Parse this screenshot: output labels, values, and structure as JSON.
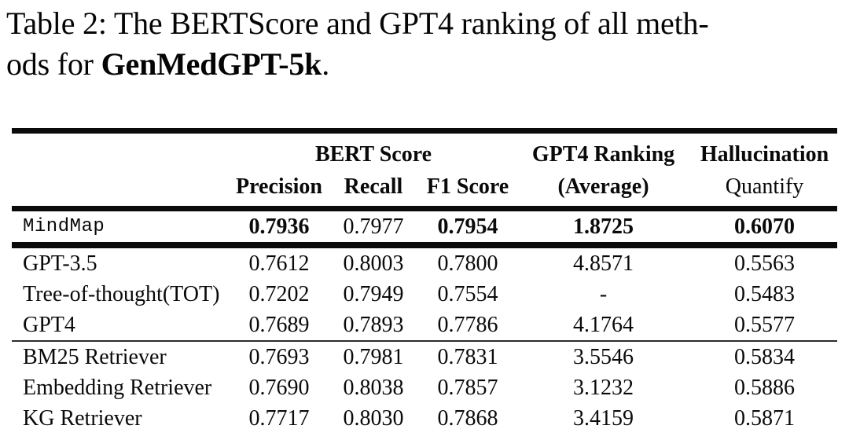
{
  "caption": {
    "label_and_line1": "Table 2: The BERTScore and GPT4 ranking of all meth-",
    "line2_pre": "ods for ",
    "dataset_bold": "GenMedGPT-5k",
    "line2_post": "."
  },
  "table": {
    "group_headers": {
      "bert_score": "BERT Score",
      "gpt4_ranking": "GPT4 Ranking",
      "hallucination": "Hallucination"
    },
    "sub_headers": {
      "precision": "Precision",
      "recall": "Recall",
      "f1": "F1 Score",
      "average": "(Average)",
      "quantify": "Quantify"
    },
    "rows": [
      {
        "method": "MindMap",
        "mono": true,
        "values": [
          "0.7936",
          "0.7977",
          "0.7954",
          "1.8725",
          "0.6070"
        ],
        "bold": [
          true,
          false,
          true,
          true,
          true
        ],
        "rule_below": "heavy"
      },
      {
        "method": "GPT-3.5",
        "values": [
          "0.7612",
          "0.8003",
          "0.7800",
          "4.8571",
          "0.5563"
        ],
        "bold": [
          false,
          false,
          false,
          false,
          false
        ],
        "rule_below": "none"
      },
      {
        "method": "Tree-of-thought(TOT)",
        "values": [
          "0.7202",
          "0.7949",
          "0.7554",
          "-",
          "0.5483"
        ],
        "bold": [
          false,
          false,
          false,
          false,
          false
        ],
        "rule_below": "none"
      },
      {
        "method": "GPT4",
        "values": [
          "0.7689",
          "0.7893",
          "0.7786",
          "4.1764",
          "0.5577"
        ],
        "bold": [
          false,
          false,
          false,
          false,
          false
        ],
        "rule_below": "thin"
      },
      {
        "method": "BM25 Retriever",
        "values": [
          "0.7693",
          "0.7981",
          "0.7831",
          "3.5546",
          "0.5834"
        ],
        "bold": [
          false,
          false,
          false,
          false,
          false
        ],
        "rule_below": "none"
      },
      {
        "method": "Embedding Retriever",
        "values": [
          "0.7690",
          "0.8038",
          "0.7857",
          "3.1232",
          "0.5886"
        ],
        "bold": [
          false,
          false,
          false,
          false,
          false
        ],
        "rule_below": "none"
      },
      {
        "method": "KG Retriever",
        "values": [
          "0.7717",
          "0.8030",
          "0.7868",
          "3.4159",
          "0.5871"
        ],
        "bold": [
          false,
          false,
          false,
          false,
          false
        ],
        "rule_below": "none"
      }
    ]
  }
}
